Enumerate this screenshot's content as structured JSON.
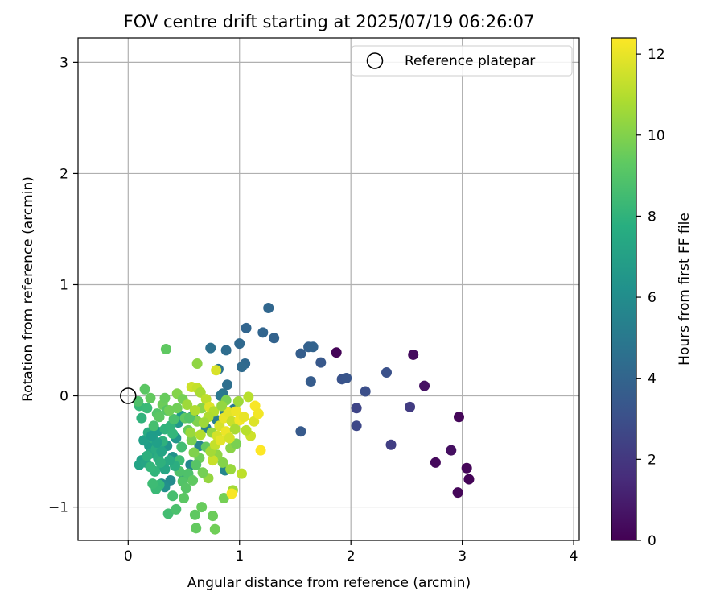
{
  "chart_data": {
    "type": "scatter",
    "title": "FOV centre drift starting at 2025/07/19 06:26:07",
    "xlabel": "Angular distance from reference (arcmin)",
    "ylabel": "Rotation from reference (arcmin)",
    "xlim": [
      -0.45,
      4.05
    ],
    "ylim": [
      -1.3,
      3.22
    ],
    "xticks": [
      "0",
      "1",
      "2",
      "3",
      "4"
    ],
    "yticks": [
      "−1",
      "0",
      "1",
      "2",
      "3"
    ],
    "grid": true,
    "legend": {
      "placement": "top-right",
      "entries": [
        "Reference platepar"
      ]
    },
    "reference_point": {
      "name": "Reference platepar",
      "x": 0,
      "y": 0
    },
    "colorbar": {
      "label": "Hours from first FF file",
      "colormap": "viridis",
      "min": 0,
      "max": 12.4,
      "ticks": [
        "0",
        "2",
        "4",
        "6",
        "8",
        "10",
        "12"
      ]
    },
    "points": [
      {
        "x": 1.87,
        "y": 0.39,
        "c": 0.1
      },
      {
        "x": 2.56,
        "y": 0.37,
        "c": 0.4
      },
      {
        "x": 2.66,
        "y": 0.09,
        "c": 0.6
      },
      {
        "x": 2.97,
        "y": -0.19,
        "c": 0.2
      },
      {
        "x": 2.76,
        "y": -0.6,
        "c": 0.3
      },
      {
        "x": 2.9,
        "y": -0.49,
        "c": 0.5
      },
      {
        "x": 3.04,
        "y": -0.65,
        "c": 0.2
      },
      {
        "x": 3.06,
        "y": -0.75,
        "c": 0.1
      },
      {
        "x": 2.96,
        "y": -0.87,
        "c": 0.2
      },
      {
        "x": 2.53,
        "y": -0.1,
        "c": 2.2
      },
      {
        "x": 2.36,
        "y": -0.44,
        "c": 2.3
      },
      {
        "x": 2.05,
        "y": -0.11,
        "c": 2.6
      },
      {
        "x": 2.05,
        "y": -0.27,
        "c": 2.7
      },
      {
        "x": 2.13,
        "y": 0.04,
        "c": 3.0
      },
      {
        "x": 2.32,
        "y": 0.21,
        "c": 3.1
      },
      {
        "x": 1.92,
        "y": 0.15,
        "c": 3.2
      },
      {
        "x": 1.96,
        "y": 0.16,
        "c": 3.3
      },
      {
        "x": 1.73,
        "y": 0.3,
        "c": 3.4
      },
      {
        "x": 1.64,
        "y": 0.13,
        "c": 3.6
      },
      {
        "x": 1.55,
        "y": -0.32,
        "c": 3.5
      },
      {
        "x": 1.55,
        "y": 0.38,
        "c": 3.7
      },
      {
        "x": 1.62,
        "y": 0.44,
        "c": 3.8
      },
      {
        "x": 1.66,
        "y": 0.44,
        "c": 3.9
      },
      {
        "x": 1.31,
        "y": 0.52,
        "c": 3.9
      },
      {
        "x": 1.21,
        "y": 0.57,
        "c": 4.0
      },
      {
        "x": 1.26,
        "y": 0.79,
        "c": 4.1
      },
      {
        "x": 1.06,
        "y": 0.61,
        "c": 4.0
      },
      {
        "x": 1.05,
        "y": 0.29,
        "c": 4.2
      },
      {
        "x": 1.02,
        "y": 0.26,
        "c": 4.3
      },
      {
        "x": 1.0,
        "y": 0.47,
        "c": 4.2
      },
      {
        "x": 0.88,
        "y": 0.41,
        "c": 4.4
      },
      {
        "x": 0.89,
        "y": 0.1,
        "c": 4.5
      },
      {
        "x": 0.74,
        "y": 0.43,
        "c": 4.6
      },
      {
        "x": 0.81,
        "y": 0.24,
        "c": 4.7
      },
      {
        "x": 0.85,
        "y": 0.02,
        "c": 4.8
      },
      {
        "x": 0.83,
        "y": 0.0,
        "c": 5.0
      },
      {
        "x": 0.95,
        "y": -0.12,
        "c": 5.1
      },
      {
        "x": 0.87,
        "y": -0.16,
        "c": 5.2
      },
      {
        "x": 0.8,
        "y": -0.22,
        "c": 5.3
      },
      {
        "x": 0.7,
        "y": -0.29,
        "c": 5.4
      },
      {
        "x": 0.58,
        "y": -0.18,
        "c": 5.5
      },
      {
        "x": 0.64,
        "y": -0.45,
        "c": 5.6
      },
      {
        "x": 0.87,
        "y": -0.67,
        "c": 5.7
      },
      {
        "x": 0.56,
        "y": -0.62,
        "c": 5.8
      },
      {
        "x": 0.5,
        "y": -0.73,
        "c": 5.9
      },
      {
        "x": 0.38,
        "y": -0.76,
        "c": 6.0
      },
      {
        "x": 0.3,
        "y": -0.79,
        "c": 6.1
      },
      {
        "x": 0.33,
        "y": -0.82,
        "c": 6.2
      },
      {
        "x": 0.4,
        "y": -0.55,
        "c": 6.3
      },
      {
        "x": 0.35,
        "y": -0.45,
        "c": 6.4
      },
      {
        "x": 0.43,
        "y": -0.38,
        "c": 6.5
      },
      {
        "x": 0.45,
        "y": -0.24,
        "c": 6.6
      },
      {
        "x": 0.48,
        "y": -0.18,
        "c": 6.7
      },
      {
        "x": 0.26,
        "y": -0.32,
        "c": 6.8
      },
      {
        "x": 0.19,
        "y": -0.45,
        "c": 6.9
      },
      {
        "x": 0.14,
        "y": -0.4,
        "c": 7.0
      },
      {
        "x": 0.12,
        "y": -0.58,
        "c": 7.1
      },
      {
        "x": 0.1,
        "y": -0.62,
        "c": 7.2
      },
      {
        "x": 0.16,
        "y": -0.6,
        "c": 7.3
      },
      {
        "x": 0.2,
        "y": -0.52,
        "c": 7.4
      },
      {
        "x": 0.22,
        "y": -0.38,
        "c": 7.5
      },
      {
        "x": 0.25,
        "y": -0.48,
        "c": 7.6
      },
      {
        "x": 0.27,
        "y": -0.56,
        "c": 7.7
      },
      {
        "x": 0.3,
        "y": -0.62,
        "c": 7.8
      },
      {
        "x": 0.31,
        "y": -0.41,
        "c": 7.9
      },
      {
        "x": 0.33,
        "y": -0.3,
        "c": 8.0
      },
      {
        "x": 0.38,
        "y": -0.27,
        "c": 8.1
      },
      {
        "x": 0.4,
        "y": -0.34,
        "c": 8.2
      },
      {
        "x": 0.28,
        "y": -0.8,
        "c": 8.3
      },
      {
        "x": 0.25,
        "y": -0.84,
        "c": 8.4
      },
      {
        "x": 0.22,
        "y": -0.79,
        "c": 8.5
      },
      {
        "x": 0.36,
        "y": -1.06,
        "c": 8.6
      },
      {
        "x": 0.4,
        "y": -0.9,
        "c": 8.7
      },
      {
        "x": 0.43,
        "y": -1.02,
        "c": 8.8
      },
      {
        "x": 0.46,
        "y": -0.68,
        "c": 8.9
      },
      {
        "x": 0.49,
        "y": -0.77,
        "c": 9.0
      },
      {
        "x": 0.52,
        "y": -0.83,
        "c": 9.1
      },
      {
        "x": 0.5,
        "y": -0.92,
        "c": 9.2
      },
      {
        "x": 0.6,
        "y": -1.07,
        "c": 9.3
      },
      {
        "x": 0.61,
        "y": -1.19,
        "c": 9.4
      },
      {
        "x": 0.66,
        "y": -1.0,
        "c": 9.5
      },
      {
        "x": 0.76,
        "y": -1.08,
        "c": 9.6
      },
      {
        "x": 0.78,
        "y": -1.2,
        "c": 9.7
      },
      {
        "x": 0.86,
        "y": -0.92,
        "c": 9.8
      },
      {
        "x": 0.34,
        "y": 0.42,
        "c": 9.3
      },
      {
        "x": 0.15,
        "y": 0.06,
        "c": 9.2
      },
      {
        "x": 0.1,
        "y": -0.09,
        "c": 8.3
      },
      {
        "x": 0.12,
        "y": -0.2,
        "c": 8.0
      },
      {
        "x": 0.17,
        "y": -0.11,
        "c": 8.4
      },
      {
        "x": 0.09,
        "y": -0.05,
        "c": 8.9
      },
      {
        "x": 0.2,
        "y": -0.02,
        "c": 9.4
      },
      {
        "x": 0.26,
        "y": -0.16,
        "c": 9.0
      },
      {
        "x": 0.31,
        "y": -0.08,
        "c": 9.6
      },
      {
        "x": 0.35,
        "y": -0.13,
        "c": 9.1
      },
      {
        "x": 0.41,
        "y": -0.21,
        "c": 8.8
      },
      {
        "x": 0.44,
        "y": -0.11,
        "c": 9.7
      },
      {
        "x": 0.51,
        "y": -0.2,
        "c": 9.3
      },
      {
        "x": 0.54,
        "y": -0.31,
        "c": 9.5
      },
      {
        "x": 0.57,
        "y": -0.4,
        "c": 9.9
      },
      {
        "x": 0.62,
        "y": -0.23,
        "c": 10.0
      },
      {
        "x": 0.66,
        "y": -0.11,
        "c": 10.2
      },
      {
        "x": 0.62,
        "y": 0.29,
        "c": 10.3
      },
      {
        "x": 0.57,
        "y": 0.08,
        "c": 11.5
      },
      {
        "x": 0.62,
        "y": 0.07,
        "c": 11.3
      },
      {
        "x": 0.65,
        "y": 0.03,
        "c": 10.8
      },
      {
        "x": 0.7,
        "y": -0.03,
        "c": 11.2
      },
      {
        "x": 0.73,
        "y": -0.1,
        "c": 11.8
      },
      {
        "x": 0.77,
        "y": -0.14,
        "c": 11.0
      },
      {
        "x": 0.72,
        "y": -0.19,
        "c": 10.9
      },
      {
        "x": 0.68,
        "y": -0.24,
        "c": 10.6
      },
      {
        "x": 0.75,
        "y": -0.33,
        "c": 10.4
      },
      {
        "x": 0.8,
        "y": -0.36,
        "c": 11.6
      },
      {
        "x": 0.82,
        "y": -0.27,
        "c": 11.7
      },
      {
        "x": 0.86,
        "y": -0.2,
        "c": 12.0
      },
      {
        "x": 0.9,
        "y": -0.15,
        "c": 11.9
      },
      {
        "x": 0.93,
        "y": -0.23,
        "c": 11.4
      },
      {
        "x": 0.97,
        "y": -0.14,
        "c": 12.1
      },
      {
        "x": 1.0,
        "y": -0.22,
        "c": 12.2
      },
      {
        "x": 1.04,
        "y": -0.19,
        "c": 12.0
      },
      {
        "x": 1.08,
        "y": -0.01,
        "c": 11.1
      },
      {
        "x": 1.1,
        "y": -0.36,
        "c": 11.5
      },
      {
        "x": 1.13,
        "y": -0.23,
        "c": 11.8
      },
      {
        "x": 1.14,
        "y": -0.09,
        "c": 12.3
      },
      {
        "x": 1.17,
        "y": -0.16,
        "c": 12.2
      },
      {
        "x": 1.19,
        "y": -0.49,
        "c": 12.4
      },
      {
        "x": 1.02,
        "y": -0.7,
        "c": 11.2
      },
      {
        "x": 0.94,
        "y": -0.85,
        "c": 10.7
      },
      {
        "x": 0.93,
        "y": -0.88,
        "c": 12.3
      },
      {
        "x": 0.92,
        "y": -0.66,
        "c": 10.5
      },
      {
        "x": 0.85,
        "y": -0.6,
        "c": 10.1
      },
      {
        "x": 0.8,
        "y": -0.53,
        "c": 10.3
      },
      {
        "x": 0.76,
        "y": -0.58,
        "c": 11.4
      },
      {
        "x": 0.72,
        "y": -0.74,
        "c": 10.4
      },
      {
        "x": 0.67,
        "y": -0.69,
        "c": 9.8
      },
      {
        "x": 0.64,
        "y": -0.56,
        "c": 9.6
      },
      {
        "x": 0.59,
        "y": -0.51,
        "c": 10.0
      },
      {
        "x": 0.56,
        "y": -0.33,
        "c": 10.5
      },
      {
        "x": 0.92,
        "y": -0.47,
        "c": 10.2
      },
      {
        "x": 0.97,
        "y": -0.43,
        "c": 9.9
      },
      {
        "x": 0.79,
        "y": 0.23,
        "c": 11.7
      },
      {
        "x": 0.55,
        "y": -0.2,
        "c": 9.0
      },
      {
        "x": 0.48,
        "y": -0.46,
        "c": 8.6
      },
      {
        "x": 0.46,
        "y": -0.58,
        "c": 8.5
      },
      {
        "x": 0.42,
        "y": -0.63,
        "c": 7.7
      },
      {
        "x": 0.37,
        "y": -0.58,
        "c": 7.5
      },
      {
        "x": 0.33,
        "y": -0.66,
        "c": 7.3
      },
      {
        "x": 0.29,
        "y": -0.6,
        "c": 7.9
      },
      {
        "x": 0.24,
        "y": -0.68,
        "c": 8.1
      },
      {
        "x": 0.2,
        "y": -0.64,
        "c": 8.2
      },
      {
        "x": 0.17,
        "y": -0.54,
        "c": 7.8
      },
      {
        "x": 0.18,
        "y": -0.33,
        "c": 7.6
      },
      {
        "x": 0.23,
        "y": -0.27,
        "c": 8.7
      },
      {
        "x": 0.28,
        "y": -0.19,
        "c": 9.2
      },
      {
        "x": 0.33,
        "y": -0.02,
        "c": 9.5
      },
      {
        "x": 0.37,
        "y": -0.13,
        "c": 9.7
      },
      {
        "x": 0.3,
        "y": -0.5,
        "c": 7.2
      },
      {
        "x": 0.26,
        "y": -0.42,
        "c": 7.0
      },
      {
        "x": 0.21,
        "y": -0.36,
        "c": 6.8
      },
      {
        "x": 0.44,
        "y": 0.02,
        "c": 10.1
      },
      {
        "x": 0.49,
        "y": -0.03,
        "c": 9.8
      },
      {
        "x": 0.53,
        "y": -0.08,
        "c": 10.6
      },
      {
        "x": 0.6,
        "y": -0.13,
        "c": 10.9
      },
      {
        "x": 0.65,
        "y": -0.35,
        "c": 11.0
      },
      {
        "x": 0.7,
        "y": -0.46,
        "c": 9.4
      },
      {
        "x": 0.74,
        "y": -0.5,
        "c": 10.7
      },
      {
        "x": 0.78,
        "y": -0.44,
        "c": 11.3
      },
      {
        "x": 0.83,
        "y": -0.4,
        "c": 11.9
      },
      {
        "x": 0.88,
        "y": -0.32,
        "c": 12.1
      },
      {
        "x": 0.91,
        "y": -0.38,
        "c": 11.6
      },
      {
        "x": 0.96,
        "y": -0.3,
        "c": 10.8
      },
      {
        "x": 1.06,
        "y": -0.31,
        "c": 11.1
      },
      {
        "x": 0.99,
        "y": -0.05,
        "c": 10.6
      },
      {
        "x": 0.88,
        "y": -0.04,
        "c": 9.9
      },
      {
        "x": 0.84,
        "y": -0.09,
        "c": 10.4
      },
      {
        "x": 0.61,
        "y": -0.62,
        "c": 9.1
      },
      {
        "x": 0.54,
        "y": -0.7,
        "c": 8.9
      },
      {
        "x": 0.58,
        "y": -0.76,
        "c": 9.3
      }
    ]
  }
}
